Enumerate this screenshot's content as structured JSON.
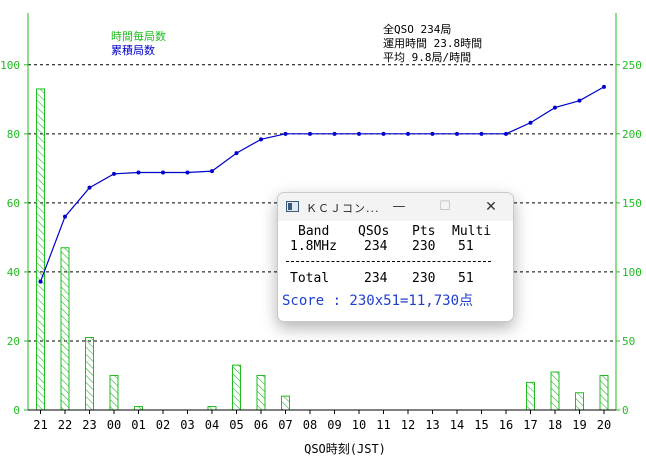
{
  "chart_data": {
    "type": "bar+line",
    "xlabel": "QSO時刻(JST)",
    "categories": [
      "21",
      "22",
      "23",
      "00",
      "01",
      "02",
      "03",
      "04",
      "05",
      "06",
      "07",
      "08",
      "09",
      "10",
      "11",
      "12",
      "13",
      "14",
      "15",
      "16",
      "17",
      "18",
      "19",
      "20"
    ],
    "series": [
      {
        "name": "時間毎局数",
        "type": "bar",
        "axis": "left",
        "color": "#22bb22",
        "values": [
          93,
          47,
          21,
          10,
          1,
          0,
          0,
          1,
          13,
          10,
          4,
          0,
          0,
          0,
          0,
          0,
          0,
          0,
          0,
          0,
          8,
          11,
          5,
          10
        ]
      },
      {
        "name": "累積局数",
        "type": "line",
        "axis": "right",
        "color": "#0000cc",
        "values": [
          93,
          140,
          161,
          171,
          172,
          172,
          172,
          173,
          186,
          196,
          200,
          200,
          200,
          200,
          200,
          200,
          200,
          200,
          200,
          200,
          208,
          219,
          224,
          234
        ]
      }
    ],
    "left_ticks": [
      "0",
      "20",
      "40",
      "60",
      "80",
      "100"
    ],
    "right_ticks": [
      "0",
      "50",
      "100",
      "150",
      "200",
      "250"
    ],
    "ylim_left": [
      0,
      115
    ],
    "ylim_right": [
      0,
      287.5
    ],
    "grid": "dashed horizontal at left axis 20-unit steps",
    "legend_placement": "top-left",
    "summary": [
      "全QSO 234局",
      "運用時間 23.8時間",
      "平均 9.8局/時間"
    ]
  },
  "score_window": {
    "title": "ＫＣＪコン...",
    "minimize": "—",
    "maximize": "☐",
    "close": "✕",
    "headers": [
      "Band",
      "QSOs",
      "Pts",
      "Multi"
    ],
    "band_row": [
      "1.8MHz",
      "234",
      "230",
      "51"
    ],
    "separator": "------------------------------",
    "total_row": [
      "Total",
      "234",
      "230",
      "51"
    ],
    "score": "Score : 230x51=11,730点"
  },
  "colors": {
    "left_axis": "#22bb22",
    "right_axis": "#22bb22",
    "bar": "#22bb22",
    "line": "#0000cc",
    "score": "#1f3fcf"
  }
}
